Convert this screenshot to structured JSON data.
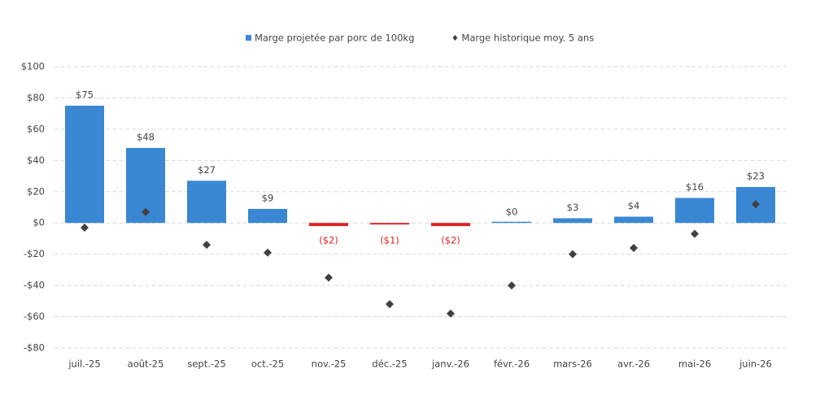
{
  "chart_data": {
    "type": "bar",
    "categories": [
      "juil.-25",
      "août-25",
      "sept.-25",
      "oct.-25",
      "nov.-25",
      "déc.-25",
      "janv.-26",
      "févr.-26",
      "mars-26",
      "avr.-26",
      "mai-26",
      "juin-26"
    ],
    "series": [
      {
        "name": "Marge projetée par porc de 100kg",
        "type": "bar",
        "color": "#3a87d4",
        "negative_color": "#e02020",
        "values": [
          75,
          48,
          27,
          9,
          -2,
          -1,
          -2,
          0,
          3,
          4,
          16,
          23
        ],
        "value_labels": [
          "$75",
          "$48",
          "$27",
          "$9",
          "($2)",
          "($1)",
          "($2)",
          "$0",
          "$3",
          "$4",
          "$16",
          "$23"
        ]
      },
      {
        "name": "Marge historique moy. 5 ans",
        "type": "scatter",
        "color": "#404040",
        "values": [
          -3,
          7,
          -14,
          -19,
          -35,
          -52,
          -58,
          -40,
          -20,
          -16,
          -7,
          12
        ]
      }
    ],
    "ylim": [
      -80,
      100
    ],
    "yticks": [
      {
        "value": -80,
        "label": "-$80"
      },
      {
        "value": -60,
        "label": "-$60"
      },
      {
        "value": -40,
        "label": "-$40"
      },
      {
        "value": -20,
        "label": "-$20"
      },
      {
        "value": 0,
        "label": "$0"
      },
      {
        "value": 20,
        "label": "$20"
      },
      {
        "value": 40,
        "label": "$40"
      },
      {
        "value": 60,
        "label": "$60"
      },
      {
        "value": 80,
        "label": "$80"
      },
      {
        "value": 100,
        "label": "$100"
      }
    ],
    "grid": true,
    "legend": "top"
  }
}
